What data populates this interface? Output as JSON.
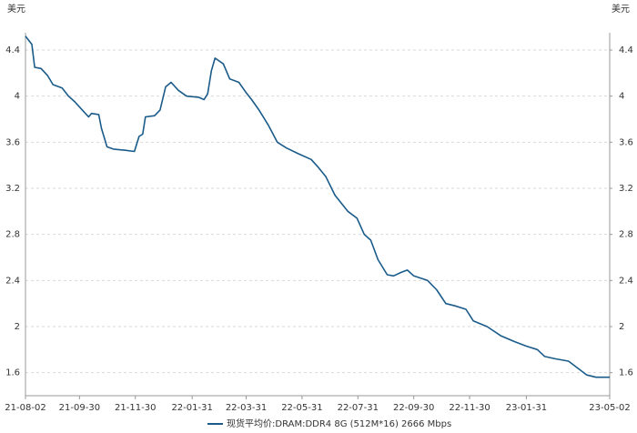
{
  "chart_data": {
    "type": "line",
    "y_label": "美元",
    "y2_label": "美元",
    "x": [
      "21-08-02",
      "21-08-09",
      "21-08-12",
      "21-08-19",
      "21-08-26",
      "21-09-01",
      "21-09-11",
      "21-09-18",
      "21-09-25",
      "21-10-03",
      "21-10-10",
      "21-10-13",
      "21-10-21",
      "21-10-24",
      "21-10-30",
      "21-11-06",
      "21-11-19",
      "21-11-29",
      "21-12-04",
      "21-12-08",
      "21-12-11",
      "21-12-21",
      "21-12-27",
      "22-01-02",
      "22-01-08",
      "22-01-16",
      "22-01-25",
      "22-02-07",
      "22-02-13",
      "22-02-17",
      "22-02-21",
      "22-02-25",
      "22-03-06",
      "22-03-13",
      "22-03-23",
      "22-03-31",
      "22-04-06",
      "22-04-14",
      "22-04-24",
      "22-05-04",
      "22-05-14",
      "22-05-27",
      "22-06-10",
      "22-06-18",
      "22-06-26",
      "22-07-06",
      "22-07-13",
      "22-07-20",
      "22-07-30",
      "22-08-07",
      "22-08-14",
      "22-08-22",
      "22-09-01",
      "22-09-08",
      "22-09-16",
      "22-09-23",
      "22-09-30",
      "22-10-15",
      "22-10-25",
      "22-11-04",
      "22-11-14",
      "22-11-26",
      "22-12-04",
      "22-12-19",
      "23-01-03",
      "23-01-18",
      "23-01-31",
      "23-02-12",
      "23-02-20",
      "23-03-04",
      "23-03-18",
      "23-03-28",
      "23-04-07",
      "23-04-17",
      "23-04-27",
      "23-05-02"
    ],
    "series": [
      {
        "name": "现货平均价:DRAM:DDR4 8G (512M*16) 2666 Mbps",
        "color": "#1a5b8a",
        "values": [
          4.52,
          4.45,
          4.25,
          4.24,
          4.18,
          4.1,
          4.07,
          4.0,
          3.95,
          3.88,
          3.82,
          3.85,
          3.84,
          3.72,
          3.56,
          3.54,
          3.53,
          3.52,
          3.65,
          3.67,
          3.82,
          3.83,
          3.88,
          4.08,
          4.12,
          4.05,
          4.0,
          3.99,
          3.97,
          4.02,
          4.22,
          4.33,
          4.28,
          4.15,
          4.12,
          4.03,
          3.97,
          3.88,
          3.75,
          3.6,
          3.55,
          3.5,
          3.45,
          3.38,
          3.3,
          3.14,
          3.07,
          3.0,
          2.94,
          2.8,
          2.75,
          2.58,
          2.45,
          2.44,
          2.47,
          2.49,
          2.44,
          2.4,
          2.32,
          2.2,
          2.18,
          2.15,
          2.05,
          2.0,
          1.92,
          1.87,
          1.83,
          1.8,
          1.74,
          1.72,
          1.7,
          1.64,
          1.58,
          1.56,
          1.56,
          1.56
        ]
      }
    ],
    "xlim": [
      "21-08-02",
      "23-05-02"
    ],
    "xticks": [
      "21-08-02",
      "21-09-30",
      "21-11-30",
      "22-01-31",
      "22-03-31",
      "22-05-31",
      "22-07-31",
      "22-09-30",
      "22-11-30",
      "23-01-31",
      "23-05-02"
    ],
    "ylim": [
      1.4,
      4.55
    ],
    "yticks": [
      1.6,
      2,
      2.4,
      2.8,
      3.2,
      3.6,
      4,
      4.4
    ],
    "y2lim": [
      1.4,
      4.55
    ],
    "y2ticks": [
      1.6,
      2,
      2.4,
      2.8,
      3.2,
      3.6,
      4,
      4.4
    ],
    "grid": true,
    "legend": "bottom"
  }
}
